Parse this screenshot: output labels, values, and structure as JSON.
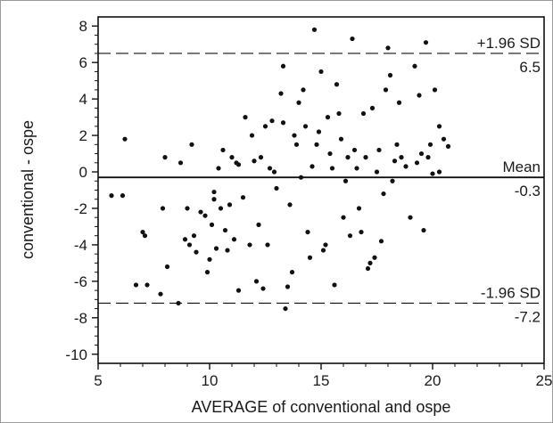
{
  "chart_data": {
    "type": "scatter",
    "title": "",
    "xlabel": "AVERAGE of conventional and ospe",
    "ylabel": "conventional - ospe",
    "xlim": [
      5,
      25
    ],
    "ylim": [
      -10.5,
      8.5
    ],
    "x_ticks": [
      5,
      10,
      15,
      20,
      25
    ],
    "y_ticks": [
      -10,
      -8,
      -6,
      -4,
      -2,
      0,
      2,
      4,
      6,
      8
    ],
    "grid": false,
    "reference_lines": [
      {
        "label": "+1.96 SD",
        "value_label": "6.5",
        "y": 6.5,
        "style": "dashed"
      },
      {
        "label": "Mean",
        "value_label": "-0.3",
        "y": -0.3,
        "style": "solid"
      },
      {
        "label": "-1.96 SD",
        "value_label": "-7.2",
        "y": -7.2,
        "style": "dashed"
      }
    ],
    "colors": {
      "points": "#111111",
      "lines": "#111111",
      "axes": "#111111"
    },
    "points": [
      [
        5.6,
        -1.3
      ],
      [
        6.1,
        -1.3
      ],
      [
        6.2,
        1.8
      ],
      [
        6.7,
        -6.2
      ],
      [
        7.0,
        -3.3
      ],
      [
        7.1,
        -3.5
      ],
      [
        7.2,
        -6.2
      ],
      [
        7.8,
        -6.7
      ],
      [
        7.9,
        -2.0
      ],
      [
        8.0,
        0.8
      ],
      [
        8.1,
        -5.2
      ],
      [
        8.6,
        -7.2
      ],
      [
        8.7,
        0.5
      ],
      [
        8.9,
        -3.7
      ],
      [
        9.0,
        -2.0
      ],
      [
        9.1,
        -4.0
      ],
      [
        9.2,
        1.5
      ],
      [
        9.3,
        -3.5
      ],
      [
        9.4,
        -4.4
      ],
      [
        9.6,
        -2.2
      ],
      [
        9.8,
        -2.4
      ],
      [
        9.9,
        -5.5
      ],
      [
        10.0,
        -4.8
      ],
      [
        10.1,
        -2.9
      ],
      [
        10.2,
        -1.1
      ],
      [
        10.2,
        -1.5
      ],
      [
        10.3,
        -4.2
      ],
      [
        10.4,
        0.2
      ],
      [
        10.5,
        -2.0
      ],
      [
        10.6,
        1.2
      ],
      [
        10.7,
        -3.2
      ],
      [
        10.8,
        -4.3
      ],
      [
        10.9,
        -1.8
      ],
      [
        11.0,
        0.8
      ],
      [
        11.1,
        -3.7
      ],
      [
        11.2,
        0.5
      ],
      [
        11.3,
        -6.5
      ],
      [
        11.3,
        0.4
      ],
      [
        11.5,
        -1.4
      ],
      [
        11.6,
        3.0
      ],
      [
        11.8,
        -4.0
      ],
      [
        11.9,
        2.0
      ],
      [
        12.0,
        0.6
      ],
      [
        12.1,
        -6.0
      ],
      [
        12.2,
        -2.9
      ],
      [
        12.3,
        0.8
      ],
      [
        12.4,
        -6.4
      ],
      [
        12.5,
        2.5
      ],
      [
        12.6,
        -4.0
      ],
      [
        12.7,
        0.2
      ],
      [
        12.8,
        2.8
      ],
      [
        12.9,
        0.0
      ],
      [
        13.0,
        -0.9
      ],
      [
        13.2,
        4.3
      ],
      [
        13.3,
        5.8
      ],
      [
        13.3,
        2.7
      ],
      [
        13.4,
        -7.5
      ],
      [
        13.5,
        -6.3
      ],
      [
        13.6,
        -1.8
      ],
      [
        13.7,
        -5.5
      ],
      [
        13.8,
        2.0
      ],
      [
        13.9,
        1.5
      ],
      [
        14.0,
        3.8
      ],
      [
        14.1,
        -0.3
      ],
      [
        14.2,
        4.5
      ],
      [
        14.3,
        2.5
      ],
      [
        14.4,
        -3.3
      ],
      [
        14.5,
        -4.7
      ],
      [
        14.6,
        0.3
      ],
      [
        14.7,
        7.8
      ],
      [
        14.8,
        1.5
      ],
      [
        14.9,
        2.2
      ],
      [
        15.0,
        5.5
      ],
      [
        15.1,
        -4.3
      ],
      [
        15.2,
        -4.0
      ],
      [
        15.3,
        3.0
      ],
      [
        15.4,
        1.0
      ],
      [
        15.5,
        0.2
      ],
      [
        15.6,
        -6.2
      ],
      [
        15.7,
        4.8
      ],
      [
        15.8,
        3.2
      ],
      [
        15.9,
        1.8
      ],
      [
        16.0,
        -2.5
      ],
      [
        16.1,
        -0.5
      ],
      [
        16.2,
        0.8
      ],
      [
        16.3,
        -3.5
      ],
      [
        16.4,
        7.3
      ],
      [
        16.5,
        1.2
      ],
      [
        16.6,
        0.2
      ],
      [
        16.7,
        -2.0
      ],
      [
        16.8,
        -3.3
      ],
      [
        16.9,
        3.2
      ],
      [
        17.0,
        0.8
      ],
      [
        17.1,
        -5.3
      ],
      [
        17.2,
        -5.0
      ],
      [
        17.3,
        3.5
      ],
      [
        17.4,
        -4.7
      ],
      [
        17.5,
        0.0
      ],
      [
        17.6,
        1.2
      ],
      [
        17.7,
        -3.8
      ],
      [
        17.8,
        -1.2
      ],
      [
        17.9,
        4.5
      ],
      [
        18.0,
        6.8
      ],
      [
        18.1,
        5.3
      ],
      [
        18.2,
        -0.5
      ],
      [
        18.3,
        0.6
      ],
      [
        18.4,
        1.5
      ],
      [
        18.5,
        3.8
      ],
      [
        18.6,
        0.8
      ],
      [
        18.8,
        0.3
      ],
      [
        19.0,
        -2.5
      ],
      [
        19.2,
        5.8
      ],
      [
        19.3,
        0.5
      ],
      [
        19.4,
        4.2
      ],
      [
        19.5,
        1.0
      ],
      [
        19.6,
        -3.2
      ],
      [
        19.7,
        7.1
      ],
      [
        19.8,
        0.8
      ],
      [
        19.9,
        1.5
      ],
      [
        20.0,
        -0.1
      ],
      [
        20.1,
        4.5
      ],
      [
        20.3,
        2.5
      ],
      [
        20.5,
        1.8
      ],
      [
        20.7,
        1.4
      ],
      [
        20.3,
        0.0
      ]
    ]
  }
}
